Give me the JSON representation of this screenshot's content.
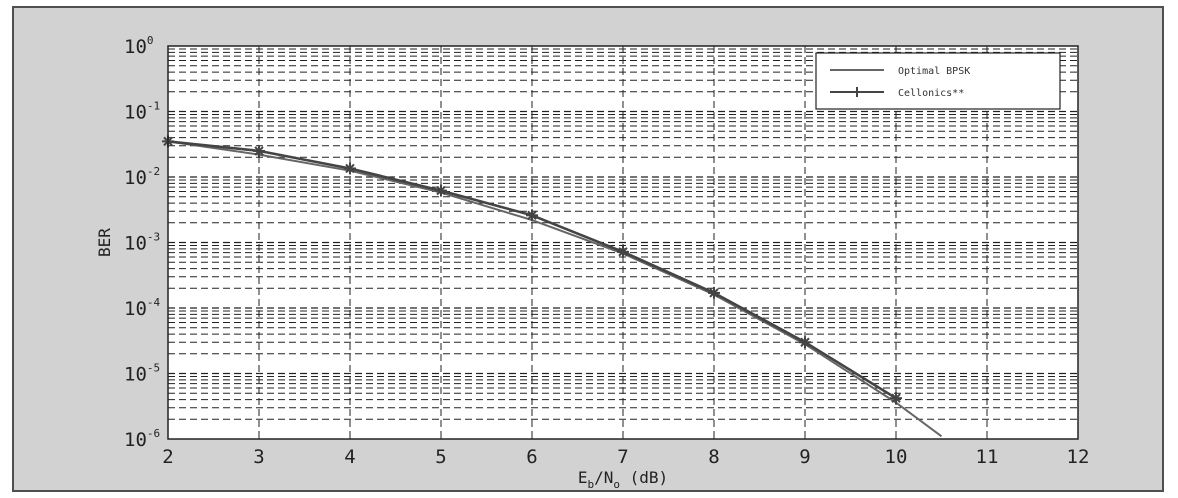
{
  "chart_data": {
    "type": "line",
    "xlabel": "E_b/N_o (dB)",
    "ylabel": "BER",
    "x_ticks": [
      2,
      3,
      4,
      5,
      6,
      7,
      8,
      9,
      10,
      11,
      12
    ],
    "xlim": [
      2,
      12
    ],
    "y_scale": "log",
    "y_tick_exponents": [
      0,
      -1,
      -2,
      -3,
      -4,
      -5,
      -6
    ],
    "ylim": [
      1e-06,
      1
    ],
    "grid": true,
    "legend_position": "top-right",
    "series": [
      {
        "name": "Optimal BPSK",
        "color": "#666666",
        "marker": "none",
        "x": [
          2,
          3,
          4,
          5,
          6,
          7,
          8,
          9,
          10,
          10.5
        ],
        "y": [
          0.035,
          0.022,
          0.0125,
          0.0058,
          0.0022,
          0.00068,
          0.00016,
          2.8e-05,
          3.6e-06,
          1.1e-06
        ]
      },
      {
        "name": "Cellonics**",
        "color": "#444444",
        "marker": "star",
        "x": [
          2,
          3,
          4,
          5,
          6,
          7,
          8,
          9,
          10
        ],
        "y": [
          0.035,
          0.025,
          0.0135,
          0.0062,
          0.0026,
          0.00072,
          0.00017,
          3e-05,
          4.2e-06
        ]
      }
    ]
  }
}
